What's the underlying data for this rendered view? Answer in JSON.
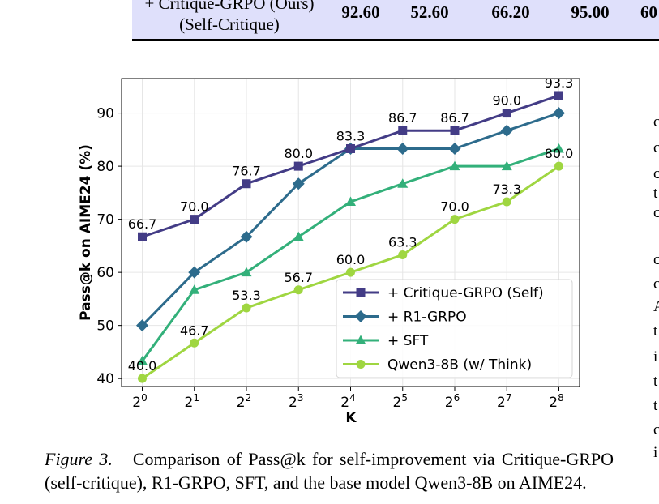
{
  "table": {
    "row_label_line1": "+ Critique-GRPO (Ours)",
    "row_label_line2": "(Self-Critique)",
    "cells": [
      "92.60",
      "52.60",
      "66.20",
      "95.00",
      "60"
    ]
  },
  "chart_data": {
    "type": "line",
    "x_tick_bases": [
      "2",
      "2",
      "2",
      "2",
      "2",
      "2",
      "2",
      "2",
      "2"
    ],
    "x_tick_exps": [
      "0",
      "1",
      "2",
      "3",
      "4",
      "5",
      "6",
      "7",
      "8"
    ],
    "x_exponents": [
      0,
      1,
      2,
      3,
      4,
      5,
      6,
      7,
      8
    ],
    "xlabel": "K",
    "ylabel": "Pass@k on AIME24 (%)",
    "ylim": [
      38.5,
      96.5
    ],
    "y_ticks": [
      "40",
      "50",
      "60",
      "70",
      "80",
      "90"
    ],
    "y_tick_values": [
      40,
      50,
      60,
      70,
      80,
      90
    ],
    "grid": true,
    "legend_position": "lower-right",
    "series": [
      {
        "name": "+ Critique-GRPO (Self)",
        "color": "#433c86",
        "marker": "square",
        "values": [
          66.7,
          70.0,
          76.7,
          80.0,
          83.3,
          86.7,
          86.7,
          90.0,
          93.3
        ],
        "labels": [
          "66.7",
          "70.0",
          "76.7",
          "80.0",
          "83.3",
          "86.7",
          "86.7",
          "90.0",
          "93.3"
        ]
      },
      {
        "name": "+ R1-GRPO",
        "color": "#2d6b8c",
        "marker": "diamond",
        "values": [
          50.0,
          60.0,
          66.7,
          76.7,
          83.3,
          83.3,
          83.3,
          86.7,
          90.0
        ]
      },
      {
        "name": "+ SFT",
        "color": "#33b07a",
        "marker": "triangle",
        "values": [
          43.3,
          56.7,
          60.0,
          66.7,
          73.3,
          76.7,
          80.0,
          80.0,
          83.3
        ]
      },
      {
        "name": "Qwen3-8B (w/ Think)",
        "color": "#9fd641",
        "marker": "circle",
        "values": [
          40.0,
          46.7,
          53.3,
          56.7,
          60.0,
          63.3,
          70.0,
          73.3,
          80.0
        ],
        "labels": [
          "40.0",
          "46.7",
          "53.3",
          "56.7",
          "60.0",
          "63.3",
          "70.0",
          "73.3",
          "80.0"
        ]
      }
    ]
  },
  "caption": {
    "label": "Figure 3.",
    "text": "Comparison of Pass@k for self-improvement via Critique-GRPO (self-critique), R1-GRPO, SFT, and the base model Qwen3-8B on AIME24."
  },
  "side_fragments": [
    "c",
    "c",
    "c",
    "t",
    "c",
    "c",
    "c",
    "A",
    "t",
    "i",
    "t",
    "t",
    "c",
    "i"
  ]
}
